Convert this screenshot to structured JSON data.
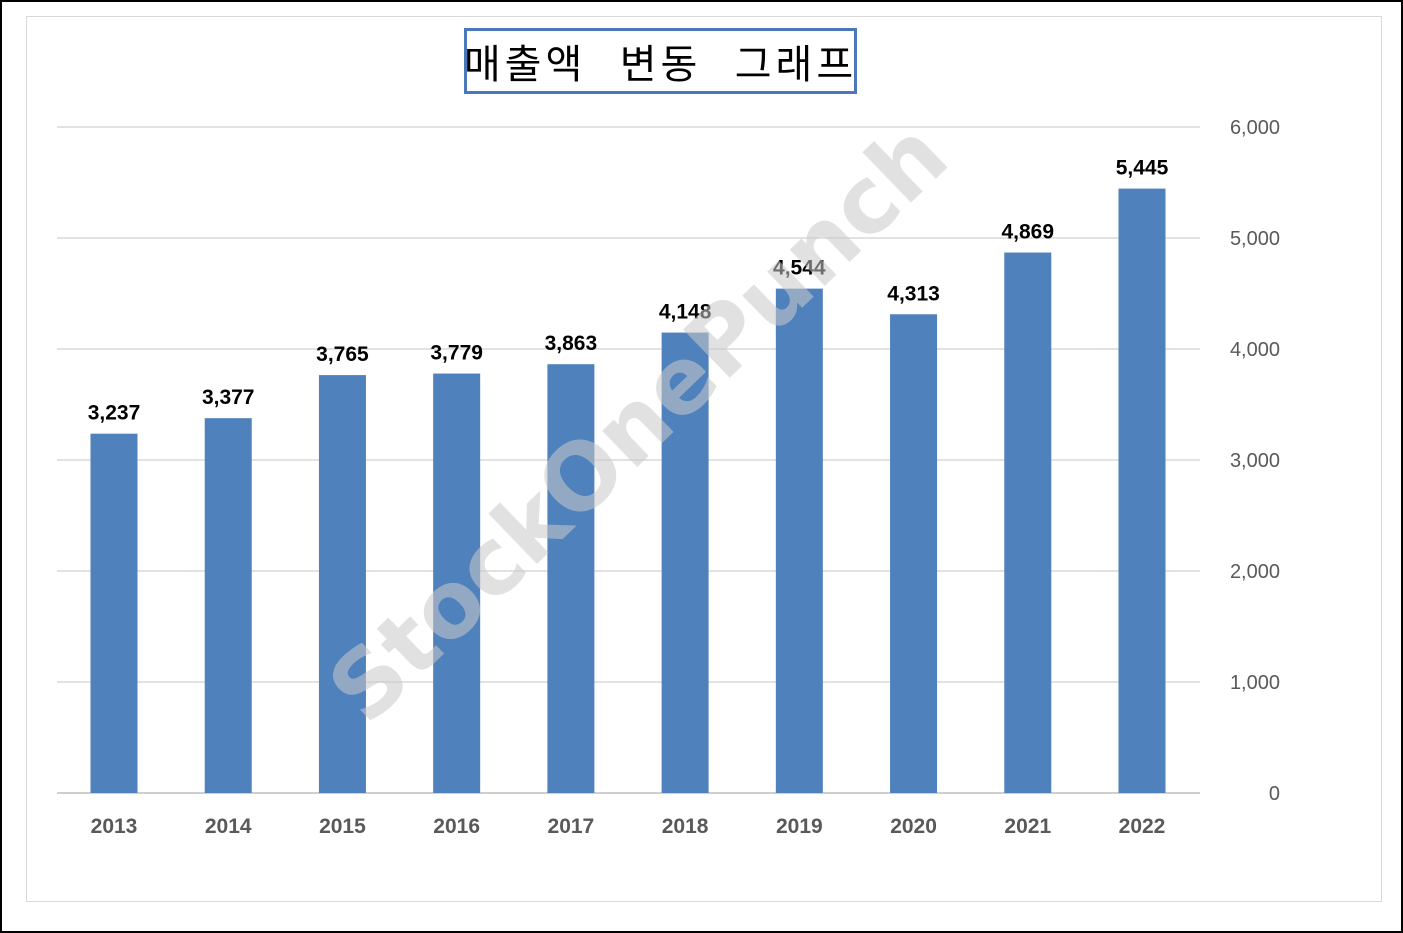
{
  "chart_data": {
    "type": "bar",
    "title": "매출액  변동  그래프",
    "categories": [
      "2013",
      "2014",
      "2015",
      "2016",
      "2017",
      "2018",
      "2019",
      "2020",
      "2021",
      "2022"
    ],
    "values": [
      3237,
      3377,
      3765,
      3779,
      3863,
      4148,
      4544,
      4313,
      4869,
      5445
    ],
    "value_labels": [
      "3,237",
      "3,377",
      "3,765",
      "3,779",
      "3,863",
      "4,148",
      "4,544",
      "4,313",
      "4,869",
      "5,445"
    ],
    "ylim": [
      0,
      6000
    ],
    "yticks": [
      "0",
      "1,000",
      "2,000",
      "3,000",
      "4,000",
      "5,000",
      "6,000"
    ],
    "yaxis_side": "right",
    "grid": true,
    "bar_color": "#4f81bd",
    "watermark": "StockOnePunch"
  }
}
